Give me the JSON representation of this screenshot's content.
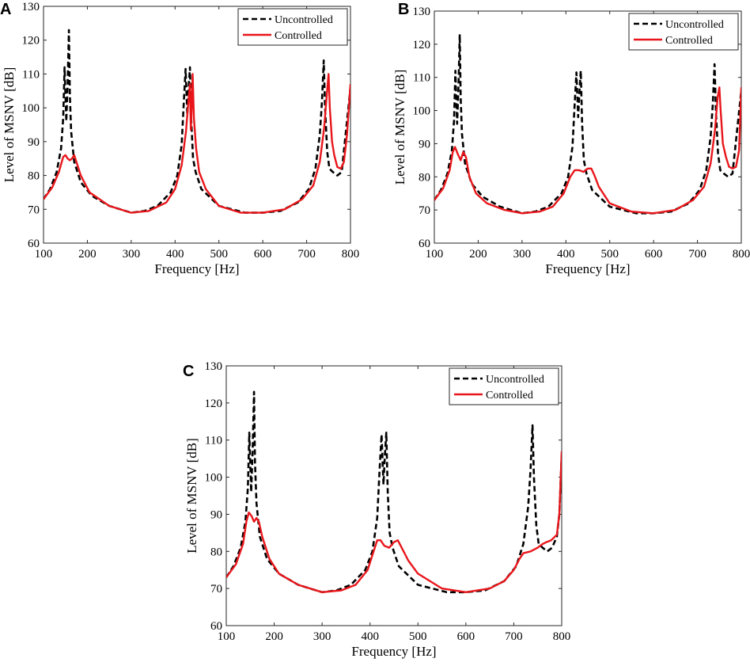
{
  "colors": {
    "uncontrolled": "#000000",
    "controlled": "#e8161b"
  },
  "chart_data": [
    {
      "panel": "A",
      "type": "line",
      "xlabel": "Frequency [Hz]",
      "ylabel": "Level of MSNV [dB]",
      "xlim": [
        100,
        800
      ],
      "ylim": [
        60,
        130
      ],
      "xticks": [
        100,
        200,
        300,
        400,
        500,
        600,
        700,
        800
      ],
      "yticks": [
        60,
        70,
        80,
        90,
        100,
        110,
        120,
        130
      ],
      "legend": [
        "Uncontrolled",
        "Controlled"
      ],
      "legend_position": "top-right",
      "series": [
        {
          "name": "Uncontrolled",
          "style": "dashed",
          "x": [
            100,
            115,
            130,
            140,
            145,
            148,
            152,
            155,
            158,
            160,
            163,
            170,
            185,
            210,
            250,
            300,
            330,
            360,
            390,
            405,
            415,
            420,
            424,
            428,
            431,
            434,
            437,
            441,
            447,
            460,
            500,
            560,
            600,
            640,
            680,
            705,
            720,
            730,
            735,
            739,
            742,
            747,
            752,
            760,
            770,
            780,
            800
          ],
          "y": [
            73,
            76,
            81,
            88,
            97,
            112,
            96,
            107,
            123,
            104,
            93,
            84,
            78,
            74,
            71,
            69,
            69.5,
            71,
            75,
            80,
            89,
            102,
            111.5,
            98,
            106,
            112,
            96,
            85,
            81,
            76,
            71,
            69,
            69,
            69.5,
            72,
            76,
            82,
            92,
            102,
            114,
            100,
            87,
            82,
            81,
            80,
            81,
            106
          ]
        },
        {
          "name": "Controlled",
          "style": "solid",
          "x": [
            100,
            120,
            135,
            145,
            150,
            155,
            160,
            165,
            170,
            175,
            185,
            205,
            250,
            300,
            340,
            380,
            400,
            415,
            425,
            431,
            434,
            436,
            438,
            440,
            443,
            448,
            455,
            470,
            500,
            550,
            600,
            650,
            690,
            715,
            730,
            740,
            746,
            750,
            753,
            758,
            763,
            770,
            778,
            785,
            792,
            800
          ],
          "y": [
            73,
            76.5,
            81,
            85.5,
            86,
            85,
            84.5,
            85,
            86,
            84,
            80,
            75,
            71,
            69,
            69.5,
            72,
            76,
            83,
            93,
            103,
            107,
            93.5,
            100,
            110,
            97,
            88,
            81,
            76,
            71,
            69,
            69,
            70,
            73,
            77,
            84,
            94,
            104,
            110,
            100,
            90,
            86,
            82.5,
            82,
            84,
            92,
            107
          ]
        }
      ]
    },
    {
      "panel": "B",
      "type": "line",
      "xlabel": "Frequency [Hz]",
      "ylabel": "Level of MSNV [dB]",
      "xlim": [
        100,
        800
      ],
      "ylim": [
        60,
        130
      ],
      "xticks": [
        100,
        200,
        300,
        400,
        500,
        600,
        700,
        800
      ],
      "yticks": [
        60,
        70,
        80,
        90,
        100,
        110,
        120,
        130
      ],
      "legend": [
        "Uncontrolled",
        "Controlled"
      ],
      "legend_position": "top-right",
      "series": [
        {
          "name": "Uncontrolled",
          "style": "dashed",
          "x": [
            100,
            115,
            130,
            140,
            145,
            148,
            152,
            155,
            158,
            160,
            163,
            170,
            185,
            210,
            250,
            300,
            330,
            360,
            390,
            405,
            415,
            420,
            424,
            428,
            431,
            434,
            437,
            441,
            447,
            460,
            500,
            560,
            600,
            640,
            680,
            705,
            720,
            730,
            735,
            739,
            742,
            747,
            752,
            760,
            770,
            780,
            800
          ],
          "y": [
            73,
            76,
            81,
            88,
            97,
            112,
            96,
            107,
            123,
            104,
            93,
            84,
            78,
            74,
            71,
            69,
            69.5,
            71,
            75,
            80,
            89,
            102,
            111.5,
            98,
            106,
            112,
            96,
            85,
            81,
            76,
            71,
            69,
            69,
            69.5,
            72,
            76,
            82,
            92,
            102,
            114,
            100,
            87,
            82,
            81,
            80,
            81,
            106
          ]
        },
        {
          "name": "Controlled",
          "style": "solid",
          "x": [
            100,
            120,
            135,
            142,
            147,
            153,
            160,
            166,
            172,
            180,
            195,
            220,
            260,
            300,
            340,
            370,
            395,
            410,
            420,
            430,
            440,
            450,
            458,
            465,
            475,
            500,
            550,
            600,
            650,
            690,
            715,
            730,
            740,
            746,
            750,
            753,
            758,
            765,
            772,
            780,
            788,
            795,
            800
          ],
          "y": [
            73,
            76.5,
            82,
            87.5,
            89,
            87,
            85,
            87.5,
            86,
            80,
            75,
            72,
            70,
            69,
            69.5,
            71,
            75,
            80,
            82,
            82,
            81.5,
            82.5,
            82.5,
            80.5,
            77,
            72,
            69.5,
            69,
            70,
            73,
            77,
            84,
            94,
            104,
            107,
            100,
            90,
            86,
            83,
            82.5,
            83,
            88,
            107
          ]
        }
      ]
    },
    {
      "panel": "C",
      "type": "line",
      "xlabel": "Frequency [Hz]",
      "ylabel": "Level of MSNV [dB]",
      "xlim": [
        100,
        800
      ],
      "ylim": [
        60,
        130
      ],
      "xticks": [
        100,
        200,
        300,
        400,
        500,
        600,
        700,
        800
      ],
      "yticks": [
        60,
        70,
        80,
        90,
        100,
        110,
        120,
        130
      ],
      "legend": [
        "Uncontrolled",
        "Controlled"
      ],
      "legend_position": "top-right",
      "series": [
        {
          "name": "Uncontrolled",
          "style": "dashed",
          "x": [
            100,
            115,
            130,
            140,
            145,
            148,
            152,
            155,
            158,
            160,
            163,
            170,
            185,
            210,
            250,
            300,
            330,
            360,
            390,
            405,
            415,
            420,
            424,
            428,
            431,
            434,
            437,
            441,
            447,
            460,
            500,
            560,
            600,
            640,
            680,
            705,
            720,
            730,
            735,
            739,
            742,
            747,
            752,
            760,
            770,
            780,
            790,
            795,
            800
          ],
          "y": [
            73,
            76,
            81,
            88,
            97,
            112,
            96,
            107,
            123,
            104,
            93,
            84,
            78,
            74,
            71,
            69,
            69.5,
            71,
            75,
            80,
            89,
            102,
            111.5,
            98,
            106,
            112,
            96,
            85,
            81,
            76,
            71,
            69,
            69,
            69.5,
            72,
            76,
            82,
            92,
            102,
            114,
            100,
            87,
            82,
            81,
            80,
            81,
            84,
            90,
            106
          ]
        },
        {
          "name": "Controlled",
          "style": "solid",
          "x": [
            100,
            120,
            135,
            142,
            147,
            153,
            158,
            163,
            168,
            175,
            190,
            210,
            250,
            300,
            340,
            370,
            395,
            405,
            415,
            422,
            430,
            440,
            450,
            458,
            466,
            480,
            500,
            550,
            600,
            650,
            680,
            700,
            712,
            720,
            735,
            750,
            760,
            768,
            778,
            790,
            795,
            800
          ],
          "y": [
            73,
            76.5,
            82,
            88,
            90.5,
            89.5,
            88,
            89,
            88,
            84,
            78,
            74,
            71,
            69,
            69.5,
            71,
            75,
            79,
            83,
            83,
            81.5,
            81,
            82.5,
            83,
            81,
            77.5,
            74,
            70,
            69,
            70,
            72,
            75,
            78,
            79.5,
            80,
            81,
            82,
            82.5,
            83,
            84.5,
            90,
            107
          ]
        }
      ]
    }
  ]
}
